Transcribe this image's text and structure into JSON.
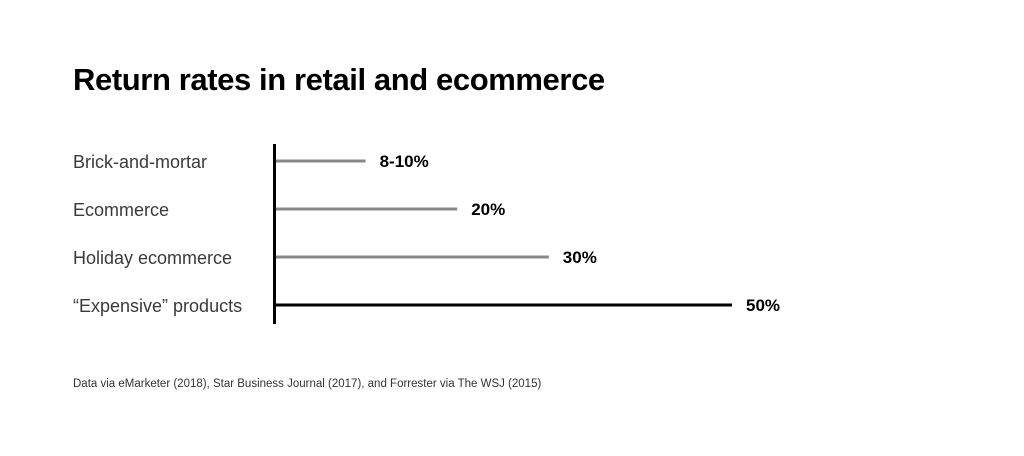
{
  "chart_data": {
    "type": "bar",
    "orientation": "horizontal",
    "title": "Return rates in retail and ecommerce",
    "categories": [
      "Brick-and-mortar",
      "Ecommerce",
      "Holiday ecommerce",
      "“Expensive” products"
    ],
    "values": [
      10,
      20,
      30,
      50
    ],
    "value_labels": [
      "8-10%",
      "20%",
      "30%",
      "50%"
    ],
    "unit": "%",
    "xlim": [
      0,
      50
    ],
    "grid": false,
    "legend": "none",
    "colors": {
      "default_bar": "#888888",
      "highlight_bar": "#000000",
      "axis": "#000000"
    },
    "highlight_index": 3
  },
  "source": "Data via eMarketer (2018), Star Business Journal (2017), and Forrester via The WSJ (2015)"
}
